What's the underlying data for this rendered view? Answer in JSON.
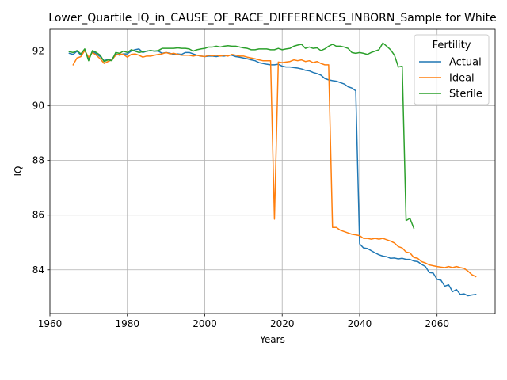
{
  "chart_data": {
    "type": "line",
    "title": "Lower_Quartile_IQ_in_CAUSE_OF_RACE_DIFFERENCES_INBORN_Sample for White",
    "xlabel": "Years",
    "ylabel": "IQ",
    "xlim": [
      1960,
      2075
    ],
    "ylim": [
      82.4,
      92.8
    ],
    "x_ticks": [
      1960,
      1980,
      2000,
      2020,
      2040,
      2060
    ],
    "y_ticks": [
      84,
      86,
      88,
      90,
      92
    ],
    "grid": true,
    "legend": {
      "title": "Fertility",
      "position": "top-right"
    },
    "series": [
      {
        "name": "Actual",
        "color": "#1f77b4",
        "points": [
          [
            1965,
            91.92
          ],
          [
            1966,
            91.88
          ],
          [
            1967,
            92.0
          ],
          [
            1968,
            91.85
          ],
          [
            1969,
            92.05
          ],
          [
            1970,
            91.7
          ],
          [
            1971,
            92.0
          ],
          [
            1972,
            91.9
          ],
          [
            1973,
            91.8
          ],
          [
            1974,
            91.65
          ],
          [
            1975,
            91.7
          ],
          [
            1976,
            91.7
          ],
          [
            1977,
            91.9
          ],
          [
            1978,
            91.85
          ],
          [
            1979,
            91.9
          ],
          [
            1980,
            91.9
          ],
          [
            1981,
            92.0
          ],
          [
            1982,
            92.05
          ],
          [
            1983,
            92.08
          ],
          [
            1984,
            91.95
          ],
          [
            1985,
            92.0
          ],
          [
            1986,
            92.02
          ],
          [
            1987,
            92.0
          ],
          [
            1988,
            92.0
          ],
          [
            1989,
            91.92
          ],
          [
            1990,
            91.95
          ],
          [
            1991,
            91.92
          ],
          [
            1992,
            91.88
          ],
          [
            1993,
            91.9
          ],
          [
            1994,
            91.88
          ],
          [
            1995,
            91.95
          ],
          [
            1996,
            91.95
          ],
          [
            1997,
            91.9
          ],
          [
            1998,
            91.85
          ],
          [
            1999,
            91.82
          ],
          [
            2000,
            91.8
          ],
          [
            2001,
            91.82
          ],
          [
            2002,
            91.82
          ],
          [
            2003,
            91.8
          ],
          [
            2004,
            91.83
          ],
          [
            2005,
            91.82
          ],
          [
            2006,
            91.85
          ],
          [
            2007,
            91.85
          ],
          [
            2008,
            91.8
          ],
          [
            2009,
            91.78
          ],
          [
            2010,
            91.75
          ],
          [
            2011,
            91.72
          ],
          [
            2012,
            91.68
          ],
          [
            2013,
            91.65
          ],
          [
            2014,
            91.58
          ],
          [
            2015,
            91.55
          ],
          [
            2016,
            91.52
          ],
          [
            2017,
            91.5
          ],
          [
            2018,
            91.5
          ],
          [
            2019,
            91.52
          ],
          [
            2020,
            91.45
          ],
          [
            2021,
            91.42
          ],
          [
            2022,
            91.42
          ],
          [
            2023,
            91.4
          ],
          [
            2024,
            91.38
          ],
          [
            2025,
            91.35
          ],
          [
            2026,
            91.3
          ],
          [
            2027,
            91.28
          ],
          [
            2028,
            91.22
          ],
          [
            2029,
            91.18
          ],
          [
            2030,
            91.12
          ],
          [
            2031,
            91.0
          ],
          [
            2032,
            90.95
          ],
          [
            2033,
            90.92
          ],
          [
            2034,
            90.9
          ],
          [
            2035,
            90.85
          ],
          [
            2036,
            90.8
          ],
          [
            2037,
            90.7
          ],
          [
            2038,
            90.65
          ],
          [
            2039,
            90.55
          ],
          [
            2040,
            84.95
          ],
          [
            2041,
            84.8
          ],
          [
            2042,
            84.78
          ],
          [
            2043,
            84.7
          ],
          [
            2044,
            84.62
          ],
          [
            2045,
            84.55
          ],
          [
            2046,
            84.5
          ],
          [
            2047,
            84.48
          ],
          [
            2048,
            84.42
          ],
          [
            2049,
            84.43
          ],
          [
            2050,
            84.4
          ],
          [
            2051,
            84.42
          ],
          [
            2052,
            84.38
          ],
          [
            2053,
            84.38
          ],
          [
            2054,
            84.32
          ],
          [
            2055,
            84.3
          ],
          [
            2056,
            84.2
          ],
          [
            2057,
            84.12
          ],
          [
            2058,
            83.9
          ],
          [
            2059,
            83.88
          ],
          [
            2060,
            83.65
          ],
          [
            2061,
            83.62
          ],
          [
            2062,
            83.4
          ],
          [
            2063,
            83.45
          ],
          [
            2064,
            83.2
          ],
          [
            2065,
            83.28
          ],
          [
            2066,
            83.1
          ],
          [
            2067,
            83.12
          ],
          [
            2068,
            83.05
          ],
          [
            2069,
            83.08
          ],
          [
            2070,
            83.1
          ]
        ]
      },
      {
        "name": "Ideal",
        "color": "#ff7f0e",
        "points": [
          [
            1966,
            91.5
          ],
          [
            1967,
            91.75
          ],
          [
            1968,
            91.8
          ],
          [
            1969,
            92.02
          ],
          [
            1970,
            91.78
          ],
          [
            1971,
            91.95
          ],
          [
            1972,
            91.85
          ],
          [
            1973,
            91.72
          ],
          [
            1974,
            91.55
          ],
          [
            1975,
            91.62
          ],
          [
            1976,
            91.68
          ],
          [
            1977,
            91.85
          ],
          [
            1978,
            91.9
          ],
          [
            1979,
            91.88
          ],
          [
            1980,
            91.78
          ],
          [
            1981,
            91.88
          ],
          [
            1982,
            91.9
          ],
          [
            1983,
            91.85
          ],
          [
            1984,
            91.78
          ],
          [
            1985,
            91.82
          ],
          [
            1986,
            91.82
          ],
          [
            1987,
            91.85
          ],
          [
            1988,
            91.88
          ],
          [
            1989,
            91.9
          ],
          [
            1990,
            91.95
          ],
          [
            1991,
            91.9
          ],
          [
            1992,
            91.92
          ],
          [
            1993,
            91.88
          ],
          [
            1994,
            91.85
          ],
          [
            1995,
            91.85
          ],
          [
            1996,
            91.85
          ],
          [
            1997,
            91.82
          ],
          [
            1998,
            91.85
          ],
          [
            1999,
            91.82
          ],
          [
            2000,
            91.8
          ],
          [
            2001,
            91.85
          ],
          [
            2002,
            91.83
          ],
          [
            2003,
            91.85
          ],
          [
            2004,
            91.82
          ],
          [
            2005,
            91.85
          ],
          [
            2006,
            91.82
          ],
          [
            2007,
            91.88
          ],
          [
            2008,
            91.85
          ],
          [
            2009,
            91.82
          ],
          [
            2010,
            91.82
          ],
          [
            2011,
            91.78
          ],
          [
            2012,
            91.75
          ],
          [
            2013,
            91.72
          ],
          [
            2014,
            91.68
          ],
          [
            2015,
            91.65
          ],
          [
            2016,
            91.65
          ],
          [
            2017,
            91.65
          ],
          [
            2018,
            85.85
          ],
          [
            2019,
            91.6
          ],
          [
            2020,
            91.58
          ],
          [
            2021,
            91.6
          ],
          [
            2022,
            91.62
          ],
          [
            2023,
            91.68
          ],
          [
            2024,
            91.65
          ],
          [
            2025,
            91.68
          ],
          [
            2026,
            91.62
          ],
          [
            2027,
            91.65
          ],
          [
            2028,
            91.58
          ],
          [
            2029,
            91.62
          ],
          [
            2030,
            91.55
          ],
          [
            2031,
            91.5
          ],
          [
            2032,
            91.5
          ],
          [
            2033,
            85.55
          ],
          [
            2034,
            85.55
          ],
          [
            2035,
            85.45
          ],
          [
            2036,
            85.4
          ],
          [
            2037,
            85.35
          ],
          [
            2038,
            85.3
          ],
          [
            2039,
            85.28
          ],
          [
            2040,
            85.25
          ],
          [
            2041,
            85.15
          ],
          [
            2042,
            85.15
          ],
          [
            2043,
            85.12
          ],
          [
            2044,
            85.15
          ],
          [
            2045,
            85.12
          ],
          [
            2046,
            85.15
          ],
          [
            2047,
            85.1
          ],
          [
            2048,
            85.05
          ],
          [
            2049,
            84.98
          ],
          [
            2050,
            84.85
          ],
          [
            2051,
            84.8
          ],
          [
            2052,
            84.65
          ],
          [
            2053,
            84.62
          ],
          [
            2054,
            84.45
          ],
          [
            2055,
            84.42
          ],
          [
            2056,
            84.3
          ],
          [
            2057,
            84.25
          ],
          [
            2058,
            84.18
          ],
          [
            2059,
            84.15
          ],
          [
            2060,
            84.12
          ],
          [
            2061,
            84.1
          ],
          [
            2062,
            84.08
          ],
          [
            2063,
            84.12
          ],
          [
            2064,
            84.08
          ],
          [
            2065,
            84.12
          ],
          [
            2066,
            84.08
          ],
          [
            2067,
            84.05
          ],
          [
            2068,
            83.95
          ],
          [
            2069,
            83.82
          ],
          [
            2070,
            83.75
          ]
        ]
      },
      {
        "name": "Sterile",
        "color": "#2ca02c",
        "points": [
          [
            1965,
            91.98
          ],
          [
            1966,
            91.95
          ],
          [
            1967,
            92.02
          ],
          [
            1968,
            91.9
          ],
          [
            1969,
            92.08
          ],
          [
            1970,
            91.65
          ],
          [
            1971,
            92.02
          ],
          [
            1972,
            91.95
          ],
          [
            1973,
            91.85
          ],
          [
            1974,
            91.62
          ],
          [
            1975,
            91.68
          ],
          [
            1976,
            91.65
          ],
          [
            1977,
            91.95
          ],
          [
            1978,
            91.92
          ],
          [
            1979,
            92.0
          ],
          [
            1980,
            91.95
          ],
          [
            1981,
            92.05
          ],
          [
            1982,
            92.0
          ],
          [
            1983,
            91.95
          ],
          [
            1984,
            91.98
          ],
          [
            1985,
            92.0
          ],
          [
            1986,
            92.02
          ],
          [
            1987,
            92.0
          ],
          [
            1988,
            92.02
          ],
          [
            1989,
            92.1
          ],
          [
            1990,
            92.1
          ],
          [
            1991,
            92.1
          ],
          [
            1992,
            92.1
          ],
          [
            1993,
            92.12
          ],
          [
            1994,
            92.1
          ],
          [
            1995,
            92.1
          ],
          [
            1996,
            92.08
          ],
          [
            1997,
            92.0
          ],
          [
            1998,
            92.05
          ],
          [
            1999,
            92.08
          ],
          [
            2000,
            92.1
          ],
          [
            2001,
            92.15
          ],
          [
            2002,
            92.15
          ],
          [
            2003,
            92.18
          ],
          [
            2004,
            92.15
          ],
          [
            2005,
            92.18
          ],
          [
            2006,
            92.2
          ],
          [
            2007,
            92.18
          ],
          [
            2008,
            92.18
          ],
          [
            2009,
            92.15
          ],
          [
            2010,
            92.12
          ],
          [
            2011,
            92.1
          ],
          [
            2012,
            92.05
          ],
          [
            2013,
            92.05
          ],
          [
            2014,
            92.08
          ],
          [
            2015,
            92.08
          ],
          [
            2016,
            92.08
          ],
          [
            2017,
            92.05
          ],
          [
            2018,
            92.05
          ],
          [
            2019,
            92.1
          ],
          [
            2020,
            92.05
          ],
          [
            2021,
            92.08
          ],
          [
            2022,
            92.1
          ],
          [
            2023,
            92.18
          ],
          [
            2024,
            92.22
          ],
          [
            2025,
            92.25
          ],
          [
            2026,
            92.1
          ],
          [
            2027,
            92.15
          ],
          [
            2028,
            92.1
          ],
          [
            2029,
            92.12
          ],
          [
            2030,
            92.02
          ],
          [
            2031,
            92.08
          ],
          [
            2032,
            92.18
          ],
          [
            2033,
            92.25
          ],
          [
            2034,
            92.18
          ],
          [
            2035,
            92.18
          ],
          [
            2036,
            92.15
          ],
          [
            2037,
            92.1
          ],
          [
            2038,
            91.95
          ],
          [
            2039,
            91.92
          ],
          [
            2040,
            91.95
          ],
          [
            2041,
            91.92
          ],
          [
            2042,
            91.88
          ],
          [
            2043,
            91.95
          ],
          [
            2044,
            92.0
          ],
          [
            2045,
            92.05
          ],
          [
            2046,
            92.3
          ],
          [
            2047,
            92.18
          ],
          [
            2048,
            92.05
          ],
          [
            2049,
            91.85
          ],
          [
            2050,
            91.42
          ],
          [
            2051,
            91.45
          ],
          [
            2052,
            85.8
          ],
          [
            2053,
            85.88
          ],
          [
            2054,
            85.52
          ]
        ]
      }
    ]
  }
}
